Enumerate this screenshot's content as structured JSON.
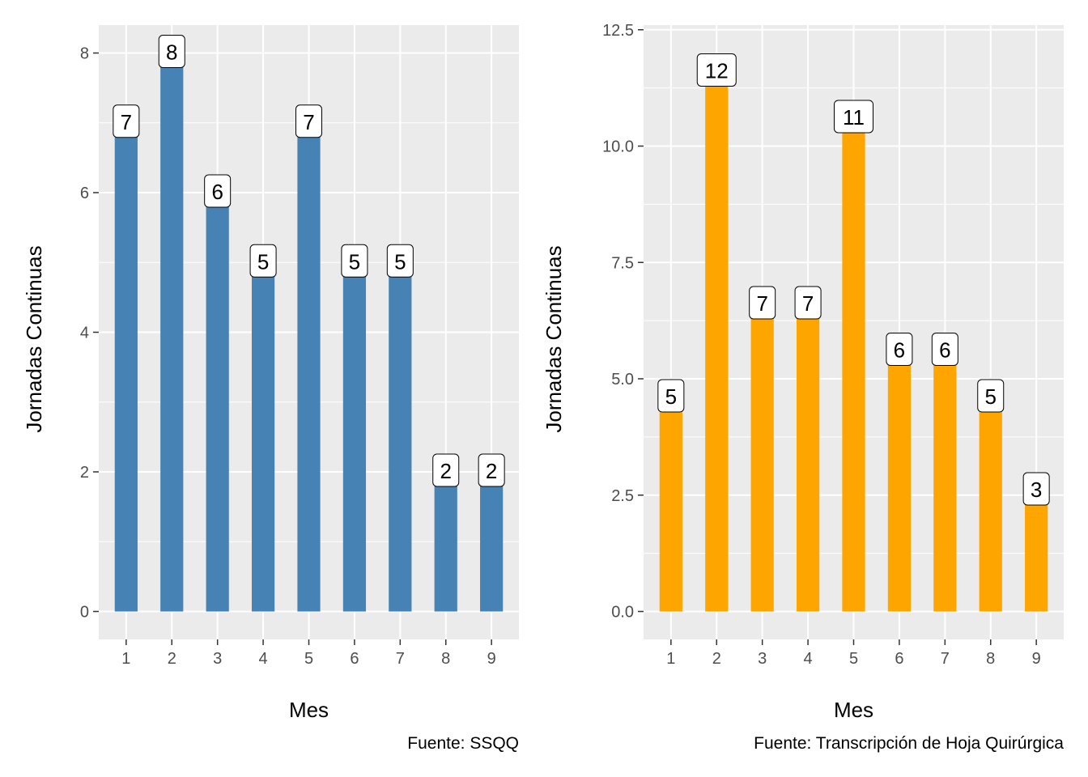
{
  "chart_data": [
    {
      "type": "bar",
      "categories": [
        "1",
        "2",
        "3",
        "4",
        "5",
        "6",
        "7",
        "8",
        "9"
      ],
      "values": [
        7,
        8,
        6,
        5,
        7,
        5,
        5,
        2,
        2
      ],
      "bar_labels": [
        "7",
        "8",
        "6",
        "5",
        "7",
        "5",
        "5",
        "2",
        "2"
      ],
      "xlabel": "Mes",
      "ylabel": "Jornadas Continuas",
      "caption": "Fuente: SSQQ",
      "ylim": [
        -0.4,
        8.4
      ],
      "yticks": [
        0,
        2,
        4,
        6,
        8
      ],
      "ytick_labels": [
        "0",
        "2",
        "4",
        "6",
        "8"
      ],
      "color": "#4682b4",
      "panel_background": "#ebebeb",
      "grid": true
    },
    {
      "type": "bar",
      "categories": [
        "1",
        "2",
        "3",
        "4",
        "5",
        "6",
        "7",
        "8",
        "9"
      ],
      "values": [
        4.6,
        11.6,
        6.6,
        6.6,
        10.6,
        5.6,
        5.6,
        4.6,
        2.6
      ],
      "bar_labels": [
        "5",
        "12",
        "7",
        "7",
        "11",
        "6",
        "6",
        "5",
        "3"
      ],
      "xlabel": "Mes",
      "ylabel": "Jornadas Continuas",
      "caption": "Fuente: Transcripción de Hoja Quirúrgica",
      "ylim": [
        -0.6,
        12.6
      ],
      "yticks": [
        0,
        2.5,
        5,
        7.5,
        10,
        12.5
      ],
      "ytick_labels": [
        "0.0",
        "2.5",
        "5.0",
        "7.5",
        "10.0",
        "12.5"
      ],
      "color": "#ffa500",
      "panel_background": "#ebebeb",
      "grid": true
    }
  ]
}
